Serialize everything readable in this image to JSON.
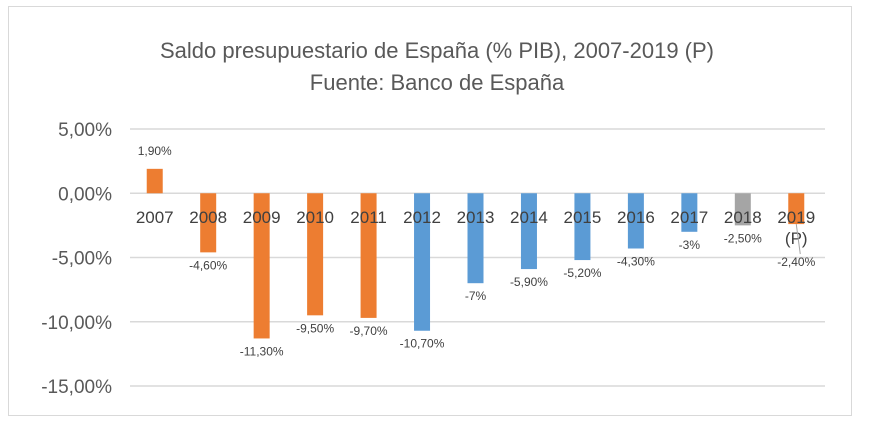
{
  "chart_data": {
    "type": "bar",
    "title": [
      "Saldo presupuestario de España (% PIB), 2007-2019 (P)",
      "Fuente: Banco de España"
    ],
    "categories": [
      "2007",
      "2008",
      "2009",
      "2010",
      "2011",
      "2012",
      "2013",
      "2014",
      "2015",
      "2016",
      "2017",
      "2018",
      "2019\n(P)"
    ],
    "values": [
      1.9,
      -4.6,
      -11.3,
      -9.5,
      -9.7,
      -10.7,
      -7,
      -5.9,
      -5.2,
      -4.3,
      -3,
      -2.5,
      -2.4
    ],
    "data_labels": [
      "1,90%",
      "-4,60%",
      "-11,30%",
      "-9,50%",
      "-9,70%",
      "-10,70%",
      "-7%",
      "-5,90%",
      "-5,20%",
      "-4,30%",
      "-3%",
      "-2,50%",
      "-2,40%"
    ],
    "bar_colors": [
      "#ED7D31",
      "#ED7D31",
      "#ED7D31",
      "#ED7D31",
      "#ED7D31",
      "#5B9BD5",
      "#5B9BD5",
      "#5B9BD5",
      "#5B9BD5",
      "#5B9BD5",
      "#5B9BD5",
      "#A5A5A5",
      "#ED7D31"
    ],
    "ylim": [
      -15,
      5
    ],
    "yticks": [
      5,
      0,
      -5,
      -10,
      -15
    ],
    "ytick_labels": [
      "5,00%",
      "0,00%",
      "-5,00%",
      "-10,00%",
      "-15,00%"
    ],
    "grid": true,
    "xlabel": "",
    "ylabel": ""
  }
}
